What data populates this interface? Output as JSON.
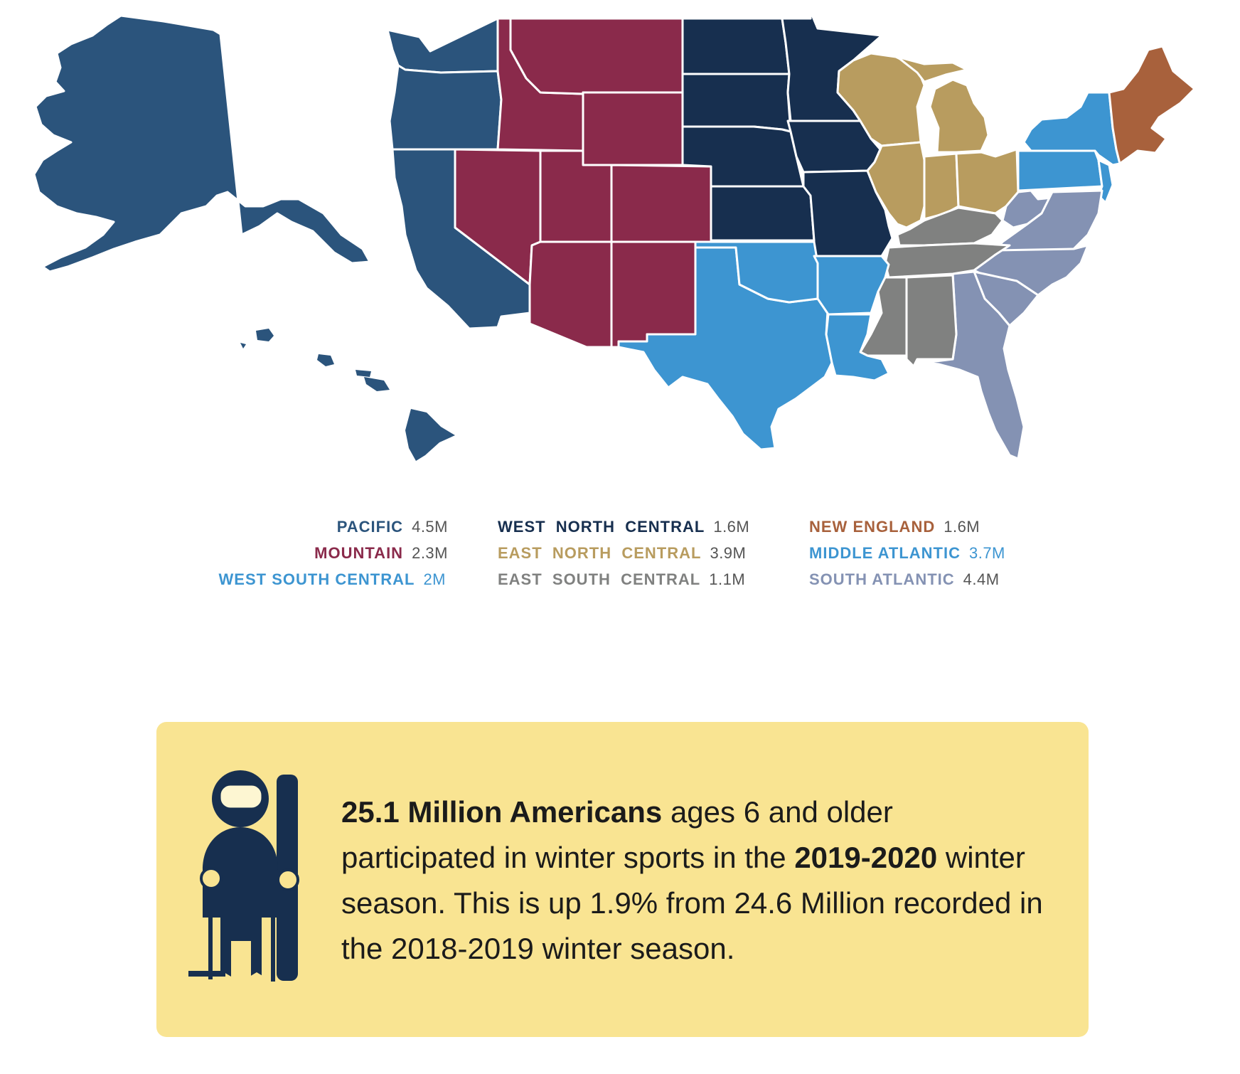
{
  "map": {
    "colors": {
      "pacific": "#2b547c",
      "mountain": "#8a2a4b",
      "west_north_central": "#172f4f",
      "east_north_central": "#b89c5f",
      "new_england": "#a8613c",
      "middle_atlantic": "#3d95d1",
      "west_south_central": "#3d95d1",
      "east_south_central": "#808180",
      "south_atlantic": "#8492b3",
      "border": "#ffffff"
    }
  },
  "legend": {
    "col1": [
      {
        "name": "PACIFIC",
        "value": "4.5M",
        "color": "#2b547c",
        "value_color": "#555555"
      },
      {
        "name": "MOUNTAIN",
        "value": "2.3M",
        "color": "#8a2a4b",
        "value_color": "#555555"
      },
      {
        "name": "WEST SOUTH CENTRAL",
        "value": "2M",
        "color": "#3d95d1",
        "value_color": "#3d95d1"
      }
    ],
    "col2": [
      {
        "name": "WEST  NORTH  CENTRAL",
        "value": "1.6M",
        "color": "#172f4f",
        "value_color": "#555555"
      },
      {
        "name": "EAST  NORTH  CENTRAL",
        "value": "3.9M",
        "color": "#b89c5f",
        "value_color": "#555555"
      },
      {
        "name": "EAST  SOUTH  CENTRAL",
        "value": "1.1M",
        "color": "#808180",
        "value_color": "#555555"
      }
    ],
    "col3": [
      {
        "name": "NEW ENGLAND",
        "value": "1.6M",
        "color": "#a8613c",
        "value_color": "#555555"
      },
      {
        "name": "MIDDLE ATLANTIC",
        "value": "3.7M",
        "color": "#3d95d1",
        "value_color": "#3d95d1"
      },
      {
        "name": "SOUTH ATLANTIC",
        "value": "4.4M",
        "color": "#8492b3",
        "value_color": "#555555"
      }
    ]
  },
  "callout": {
    "bold_1": "25.1 Million Americans",
    "text_1": " ages 6 and older participated in winter sports in the ",
    "bold_2": "2019-2020",
    "text_2": " winter season. This is up 1.9% from 24.6 Million recorded in the 2018-2019 winter season.",
    "icon": "skier-icon",
    "background": "#f9e492"
  }
}
